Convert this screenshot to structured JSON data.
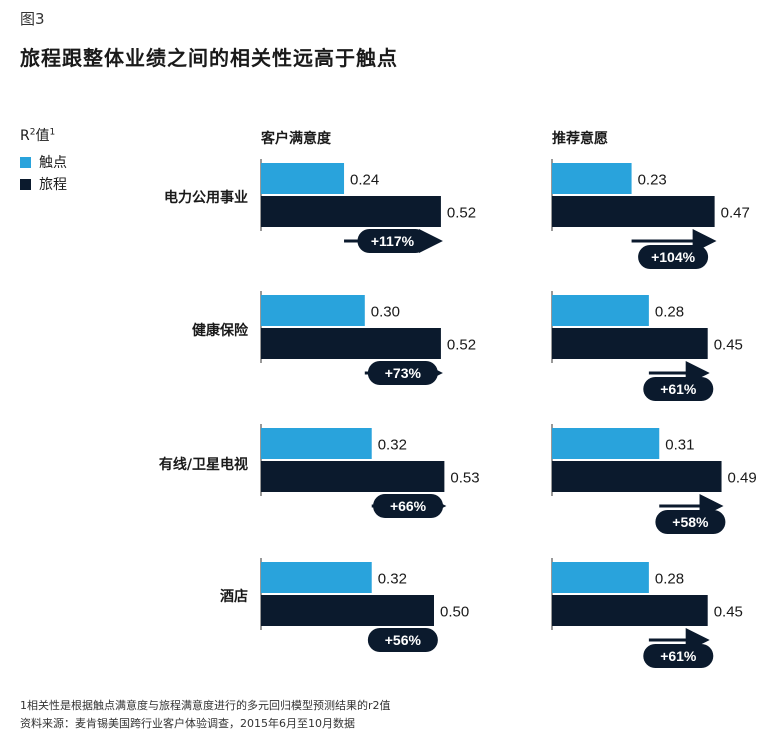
{
  "figure_label": "图3",
  "title": "旅程跟整体业绩之间的相关性远高于触点",
  "legend": {
    "title": "R",
    "title_sup": "2",
    "title_suffix": "值",
    "title_footnote": "1",
    "items": [
      {
        "label": "触点",
        "color": "#29a3dc"
      },
      {
        "label": "旅程",
        "color": "#0b1a2d"
      }
    ]
  },
  "chart_data": {
    "type": "bar",
    "orientation": "horizontal",
    "title": "旅程跟整体业绩之间的相关性远高于触点",
    "categories": [
      "电力公用事业",
      "健康保险",
      "有线/卫星电视",
      "酒店"
    ],
    "panels": [
      {
        "title": "客户满意度",
        "series": [
          {
            "name": "触点",
            "values": [
              0.24,
              0.3,
              0.32,
              0.32
            ],
            "labels": [
              "0.24",
              "0.30",
              "0.32",
              "0.32"
            ]
          },
          {
            "name": "旅程",
            "values": [
              0.52,
              0.52,
              0.53,
              0.5
            ],
            "labels": [
              "0.52",
              "0.52",
              "0.53",
              "0.50"
            ]
          }
        ],
        "changes": [
          "+117%",
          "+73%",
          "+66%",
          "+56%"
        ]
      },
      {
        "title": "推荐意愿",
        "series": [
          {
            "name": "触点",
            "values": [
              0.23,
              0.28,
              0.31,
              0.28
            ],
            "labels": [
              "0.23",
              "0.28",
              "0.31",
              "0.28"
            ]
          },
          {
            "name": "旅程",
            "values": [
              0.47,
              0.45,
              0.49,
              0.45
            ],
            "labels": [
              "0.47",
              "0.45",
              "0.49",
              "0.45"
            ]
          }
        ],
        "changes": [
          "+104%",
          "+61%",
          "+58%",
          "+61%"
        ]
      }
    ],
    "colors": {
      "touchpoint": "#29a3dc",
      "journey": "#0b1a2d",
      "axis": "#999999"
    }
  },
  "footnotes": {
    "note1": "1相关性是根据触点满意度与旅程满意度进行的多元回归模型预测结果的r2值",
    "source": "资料来源：麦肯锡美国跨行业客户体验调查，2015年6月至10月数据"
  }
}
